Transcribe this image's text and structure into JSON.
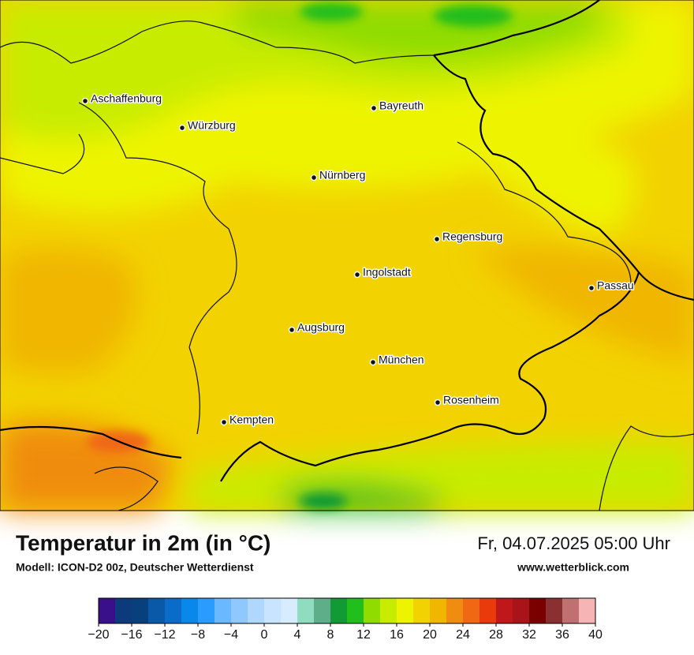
{
  "header": {
    "title": "Temperatur in 2m (in °C)",
    "subtitle": "Modell: ICON-D2 00z, Deutscher Wetterdienst",
    "datetime": "Fr, 04.07.2025 05:00 Uhr",
    "website": "www.wetterblick.com"
  },
  "cities": [
    "Aschaffenburg",
    "Würzburg",
    "Bayreuth",
    "Nürnberg",
    "Regensburg",
    "Ingolstadt",
    "Passau",
    "Augsburg",
    "München",
    "Rosenheim",
    "Kempten"
  ],
  "colorbar": {
    "lim": [
      -20,
      40
    ],
    "colors": [
      "#3a0f8a",
      "#0d3a7a",
      "#08407e",
      "#0a58a8",
      "#0a6cc8",
      "#0a88ea",
      "#2a9cff",
      "#6ab8ff",
      "#8ec8ff",
      "#b0d8ff",
      "#c8e4ff",
      "#d8ecff",
      "#90dcc0",
      "#5fae8a",
      "#119a35",
      "#22be1c",
      "#90dc00",
      "#c8ec00",
      "#eef400",
      "#f2d200",
      "#f0b600",
      "#f08c10",
      "#f06814",
      "#e83a0a",
      "#c0181a",
      "#a8141a",
      "#7a0000",
      "#8b3030",
      "#c07070",
      "#f7b4b4"
    ],
    "ticks": [
      {
        "value": -20,
        "label": "−20"
      },
      {
        "value": -16,
        "label": "−16"
      },
      {
        "value": -12,
        "label": "−12"
      },
      {
        "value": -8,
        "label": "−8"
      },
      {
        "value": -4,
        "label": "−4"
      },
      0,
      4,
      8,
      12,
      16,
      20,
      24,
      28,
      32,
      36,
      40
    ]
  }
}
